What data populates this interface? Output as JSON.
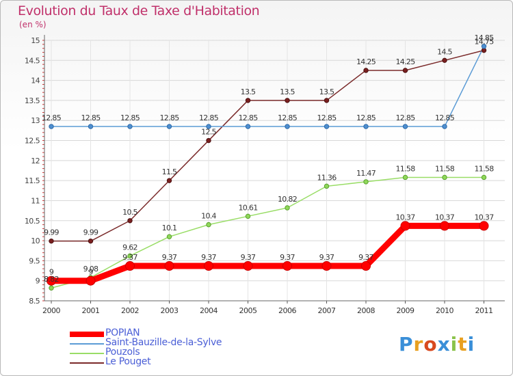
{
  "chart_data": {
    "type": "line",
    "title": "Evolution du Taux de Taxe d'Habitation",
    "subtitle": "(en %)",
    "x": [
      "2000",
      "2001",
      "2002",
      "2003",
      "2004",
      "2005",
      "2006",
      "2007",
      "2008",
      "2009",
      "2010",
      "2011"
    ],
    "ylim": [
      8.5,
      15
    ],
    "yticks": [
      "8.5",
      "9",
      "9.5",
      "10",
      "10.5",
      "11",
      "11.5",
      "12",
      "12.5",
      "13",
      "13.5",
      "14",
      "14.5",
      "15"
    ],
    "grid": true,
    "legend_placement": "bottom-left",
    "series": [
      {
        "name": "POPIAN",
        "color": "#ff0000",
        "values": [
          9,
          9,
          9.37,
          9.37,
          9.37,
          9.37,
          9.37,
          9.37,
          9.37,
          10.37,
          10.37,
          10.37
        ],
        "labels": [
          "9",
          "9",
          "9.37",
          "9.37",
          "9.37",
          "9.37",
          "9.37",
          "9.37",
          "9.37",
          "10.37",
          "10.37",
          "10.37"
        ]
      },
      {
        "name": "Saint-Bauzille-de-la-Sylve",
        "color": "#5b9bd5",
        "values": [
          12.85,
          12.85,
          12.85,
          12.85,
          12.85,
          12.85,
          12.85,
          12.85,
          12.85,
          12.85,
          12.85,
          14.85
        ],
        "labels": [
          "12.85",
          "12.85",
          "12.85",
          "12.85",
          "12.85",
          "12.85",
          "12.85",
          "12.85",
          "12.85",
          "12.85",
          "12.85",
          "14.85"
        ]
      },
      {
        "name": "Pouzols",
        "color": "#99dd66",
        "values": [
          8.82,
          9.08,
          9.62,
          10.1,
          10.4,
          10.61,
          10.82,
          11.36,
          11.47,
          11.58,
          11.58,
          11.58
        ],
        "labels": [
          "8.82",
          "9.08",
          "9.62",
          "10.1",
          "10.4",
          "10.61",
          "10.82",
          "11.36",
          "11.47",
          "11.58",
          "11.58",
          "11.58"
        ]
      },
      {
        "name": "Le Pouget",
        "color": "#7a2a2a",
        "values": [
          9.99,
          9.99,
          10.5,
          11.5,
          12.5,
          13.5,
          13.5,
          13.5,
          14.25,
          14.25,
          14.5,
          14.75
        ],
        "labels": [
          "9.99",
          "9.99",
          "10.5",
          "11.5",
          "12.5",
          "13.5",
          "13.5",
          "13.5",
          "14.25",
          "14.25",
          "14.5",
          "14.75"
        ]
      }
    ]
  },
  "brand": {
    "text": "Proxiti"
  }
}
